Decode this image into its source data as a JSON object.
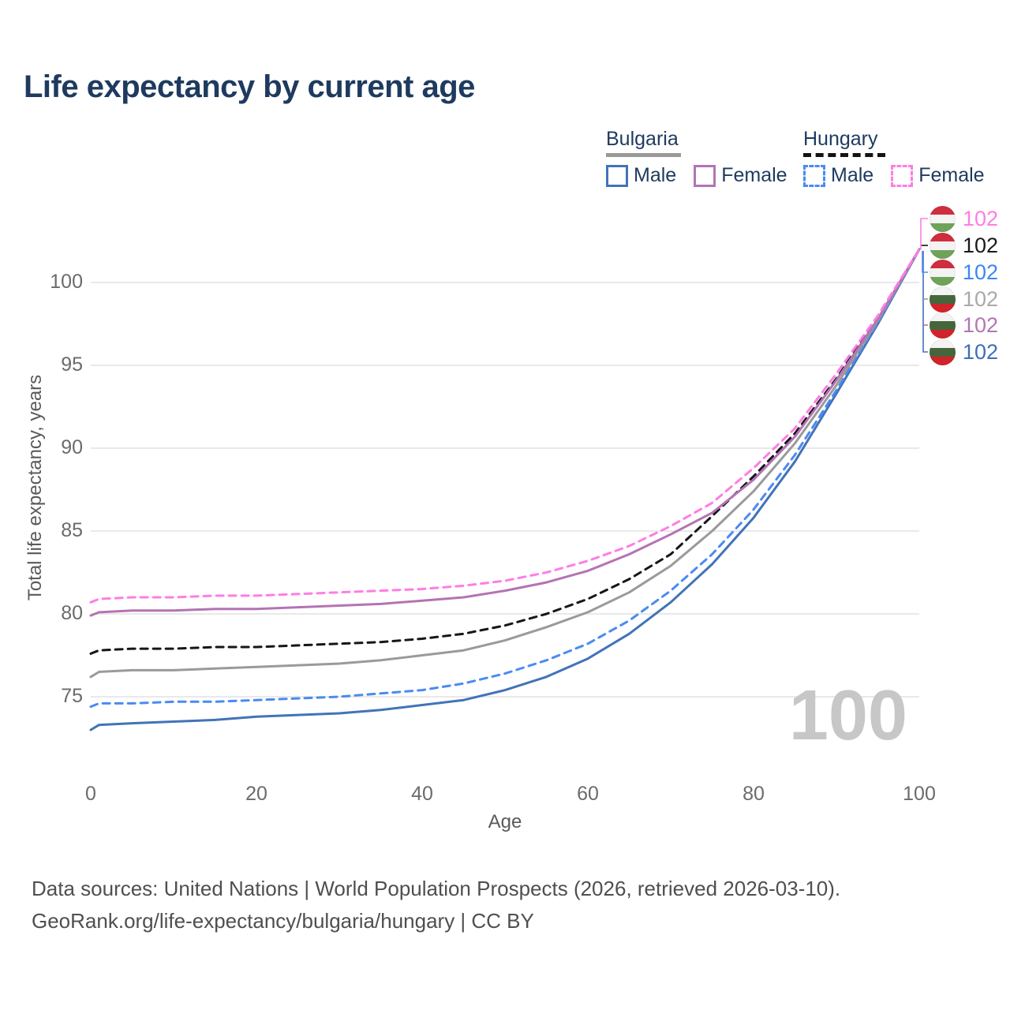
{
  "title": "Life expectancy by current age",
  "legend": {
    "groups": [
      {
        "country": "Bulgaria",
        "line_style": "solid",
        "underline_color": "#999999",
        "items": [
          {
            "label": "Male",
            "color": "#4273b8"
          },
          {
            "label": "Female",
            "color": "#b473b4"
          }
        ]
      },
      {
        "country": "Hungary",
        "line_style": "dashed",
        "underline_color": "#141414",
        "items": [
          {
            "label": "Male",
            "color": "#4b8af2"
          },
          {
            "label": "Female",
            "color": "#ff7de4"
          }
        ]
      }
    ]
  },
  "chart_data": {
    "type": "line",
    "title": "Life expectancy by current age",
    "xlabel": "Age",
    "ylabel": "Total life expectancy, years",
    "xlim": [
      0,
      100
    ],
    "ylim": [
      72.5,
      103
    ],
    "xticks": [
      0,
      20,
      40,
      60,
      80,
      100
    ],
    "yticks": [
      75,
      80,
      85,
      90,
      95,
      100
    ],
    "grid": "horizontal",
    "x": [
      0,
      1,
      5,
      10,
      15,
      20,
      25,
      30,
      35,
      40,
      45,
      50,
      55,
      60,
      65,
      70,
      75,
      80,
      85,
      90,
      95,
      100
    ],
    "series": [
      {
        "name": "Bulgaria Male",
        "country": "Bulgaria",
        "sex": "Male",
        "style": "solid",
        "color": "#4273b8",
        "label_color": "#3f6fb5",
        "flag": "bulgaria",
        "end_value": "102",
        "label_row": 5,
        "values": [
          73.0,
          73.3,
          73.4,
          73.5,
          73.6,
          73.8,
          73.9,
          74.0,
          74.2,
          74.5,
          74.8,
          75.4,
          76.2,
          77.3,
          78.8,
          80.7,
          83.0,
          85.8,
          89.2,
          93.3,
          97.5,
          102
        ]
      },
      {
        "name": "Hungary Male",
        "country": "Hungary",
        "sex": "Male",
        "style": "dashed",
        "color": "#4b8af2",
        "label_color": "#3f86f0",
        "flag": "hungary",
        "end_value": "102",
        "label_row": 2,
        "values": [
          74.4,
          74.6,
          74.6,
          74.7,
          74.7,
          74.8,
          74.9,
          75.0,
          75.2,
          75.4,
          75.8,
          76.4,
          77.2,
          78.2,
          79.6,
          81.4,
          83.6,
          86.3,
          89.6,
          93.5,
          97.6,
          102
        ]
      },
      {
        "name": "Bulgaria Both sexes",
        "country": "Bulgaria",
        "sex": "Both",
        "style": "solid",
        "color": "#9a9a9a",
        "label_color": "#a9a9a9",
        "flag": "bulgaria",
        "end_value": "102",
        "label_row": 3,
        "values": [
          76.2,
          76.5,
          76.6,
          76.6,
          76.7,
          76.8,
          76.9,
          77.0,
          77.2,
          77.5,
          77.8,
          78.4,
          79.2,
          80.1,
          81.3,
          82.9,
          85.0,
          87.4,
          90.3,
          93.8,
          97.7,
          102
        ]
      },
      {
        "name": "Hungary Both sexes",
        "country": "Hungary",
        "sex": "Both",
        "style": "dashed",
        "color": "#161616",
        "label_color": "#1a1a1a",
        "flag": "hungary",
        "end_value": "102",
        "label_row": 1,
        "values": [
          77.6,
          77.8,
          77.9,
          77.9,
          78.0,
          78.0,
          78.1,
          78.2,
          78.3,
          78.5,
          78.8,
          79.3,
          80.0,
          80.9,
          82.1,
          83.6,
          85.9,
          88.3,
          90.9,
          94.2,
          97.9,
          102
        ]
      },
      {
        "name": "Bulgaria Female",
        "country": "Bulgaria",
        "sex": "Female",
        "style": "solid",
        "color": "#b473b4",
        "label_color": "#b177b1",
        "flag": "bulgaria",
        "end_value": "102",
        "label_row": 4,
        "values": [
          79.9,
          80.1,
          80.2,
          80.2,
          80.3,
          80.3,
          80.4,
          80.5,
          80.6,
          80.8,
          81.0,
          81.4,
          81.9,
          82.6,
          83.6,
          84.8,
          86.1,
          88.1,
          90.7,
          94.1,
          97.8,
          102
        ]
      },
      {
        "name": "Hungary Female",
        "country": "Hungary",
        "sex": "Female",
        "style": "dashed",
        "color": "#ff7de4",
        "label_color": "#ff7de4",
        "flag": "hungary",
        "end_value": "102",
        "label_row": 0,
        "values": [
          80.7,
          80.9,
          81.0,
          81.0,
          81.1,
          81.1,
          81.2,
          81.3,
          81.4,
          81.5,
          81.7,
          82.0,
          82.5,
          83.2,
          84.1,
          85.3,
          86.7,
          88.8,
          91.2,
          94.5,
          98.0,
          102
        ]
      }
    ]
  },
  "flags": {
    "hungary": [
      "#cf2e3e",
      "#f3f3f3",
      "#6fa35a"
    ],
    "bulgaria": [
      "#f3f3f3",
      "#45663a",
      "#d2222a"
    ]
  },
  "watermark": "100",
  "footer": {
    "line1": "Data sources: United Nations | World Population Prospects (2026, retrieved 2026-03-10).",
    "line2": "GeoRank.org/life-expectancy/bulgaria/hungary | CC BY"
  }
}
